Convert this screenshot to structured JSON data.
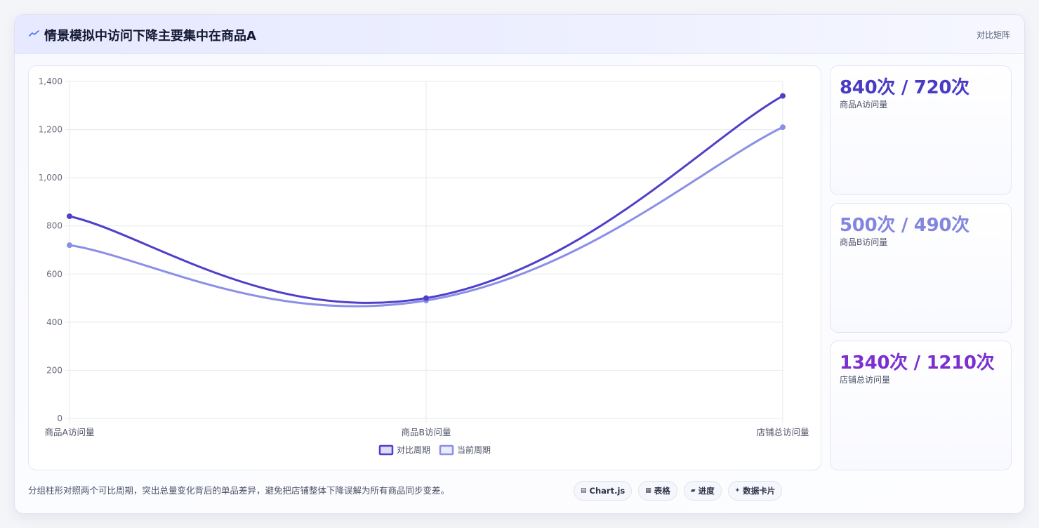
{
  "header": {
    "title": "情景模拟中访问下降主要集中在商品A",
    "tag": "对比矩阵",
    "icon": "trend-line-icon"
  },
  "chart_data": {
    "type": "line",
    "categories": [
      "商品A访问量",
      "商品B访问量",
      "店铺总访问量"
    ],
    "series": [
      {
        "name": "对比周期",
        "values": [
          840,
          500,
          1340
        ],
        "color": "#4f3fc9"
      },
      {
        "name": "当前周期",
        "values": [
          720,
          490,
          1210
        ],
        "color": "#8b8fe6"
      }
    ],
    "ylim": [
      0,
      1400
    ],
    "yticks": [
      "0",
      "200",
      "400",
      "600",
      "800",
      "1,000",
      "1,200",
      "1,400"
    ],
    "ytick_values": [
      0,
      200,
      400,
      600,
      800,
      1000,
      1200,
      1400
    ],
    "legend_position": "bottom",
    "grid": true
  },
  "stats": [
    {
      "value": "840次 / 720次",
      "label": "商品A访问量",
      "color": "#4a3bc4"
    },
    {
      "value": "500次 / 490次",
      "label": "商品B访问量",
      "color": "#8286df"
    },
    {
      "value": "1340次 / 1210次",
      "label": "店铺总访问量",
      "color": "#7b2fd0"
    }
  ],
  "footer": {
    "note": "分组柱形对照两个可比周期，突出总量变化背后的单品差异，避免把店铺整体下降误解为所有商品同步变差。",
    "chips": [
      {
        "icon": "chart-icon",
        "glyph": "▤",
        "label": "Chart.js"
      },
      {
        "icon": "table-icon",
        "glyph": "▦",
        "label": "表格"
      },
      {
        "icon": "progress-icon",
        "glyph": "▰",
        "label": "进度"
      },
      {
        "icon": "sparkle-icon",
        "glyph": "✦",
        "label": "数据卡片"
      }
    ]
  }
}
